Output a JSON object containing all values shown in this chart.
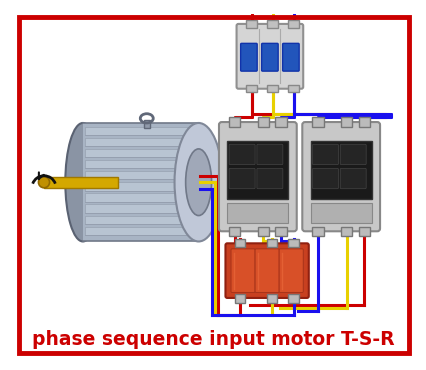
{
  "title": "phase sequence input motor T-S-R",
  "title_color": "#cc0000",
  "title_fontsize": 13.5,
  "bg_color": "#ffffff",
  "border_color": "#cc0000",
  "border_lw": 3.5,
  "wire_red": "#cc0000",
  "wire_yellow": "#e8d000",
  "wire_blue": "#1a10ee",
  "wire_lw": 2.2,
  "figsize": [
    4.27,
    3.7
  ],
  "dpi": 100
}
